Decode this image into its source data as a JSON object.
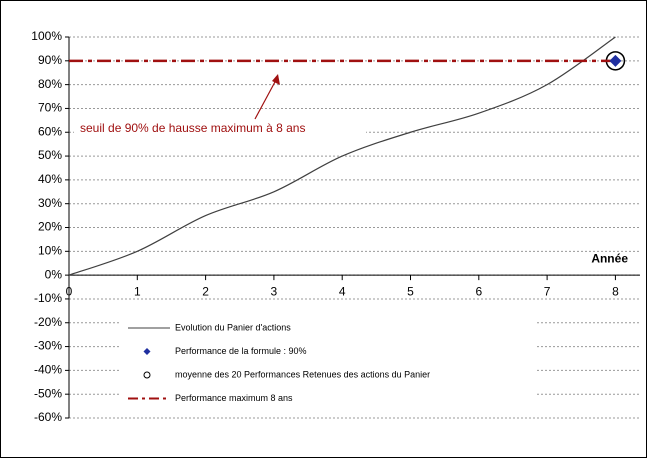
{
  "chart_data": {
    "type": "line",
    "x_label": "Année",
    "annotation": "seuil de 90% de hausse maximum à 8 ans",
    "xlim": [
      0,
      8.36
    ],
    "xticks": [
      0,
      1,
      2,
      3,
      4,
      5,
      6,
      7,
      8
    ],
    "ylim": [
      -60,
      100
    ],
    "yticks": [
      {
        "value": -60,
        "label": "-60%"
      },
      {
        "value": -50,
        "label": "-50%"
      },
      {
        "value": -40,
        "label": "-40%"
      },
      {
        "value": -30,
        "label": "-30%"
      },
      {
        "value": -20,
        "label": "-20%"
      },
      {
        "value": -10,
        "label": "-10%"
      },
      {
        "value": 0,
        "label": "0%"
      },
      {
        "value": 10,
        "label": "10%"
      },
      {
        "value": 20,
        "label": "20%"
      },
      {
        "value": 30,
        "label": "30%"
      },
      {
        "value": 40,
        "label": "40%"
      },
      {
        "value": 50,
        "label": "50%"
      },
      {
        "value": 60,
        "label": "60%"
      },
      {
        "value": 70,
        "label": "70%"
      },
      {
        "value": 80,
        "label": "80%"
      },
      {
        "value": 90,
        "label": "90%"
      },
      {
        "value": 100,
        "label": "100%"
      }
    ],
    "grid": true,
    "series": [
      {
        "name": "Evolution du Panier d'actions",
        "color": "#404040",
        "style": "line",
        "x": [
          0,
          1,
          2,
          3,
          4,
          5,
          6,
          7,
          8
        ],
        "values": [
          0,
          10,
          25,
          35,
          50,
          60,
          68,
          80,
          100
        ]
      },
      {
        "name": "Performance de la formule : 90%",
        "color": "#1f2fa0",
        "style": "diamond",
        "x": [
          8
        ],
        "values": [
          90
        ]
      },
      {
        "name": "moyenne des 20 Performances Retenues des actions du Panier",
        "color": "#000000",
        "style": "circle",
        "x": [
          8
        ],
        "values": [
          90
        ]
      },
      {
        "name": "Performance maximum 8 ans",
        "color": "#a01010",
        "style": "dashdot",
        "x": [
          0,
          8
        ],
        "values": [
          90,
          90
        ]
      }
    ]
  }
}
